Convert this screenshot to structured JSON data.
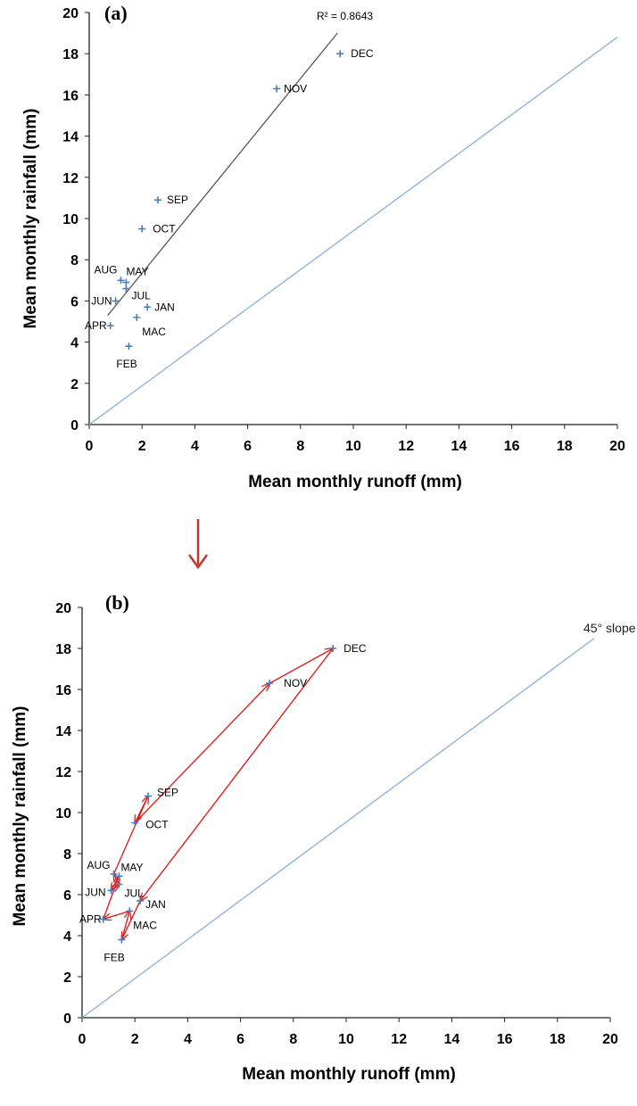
{
  "connector": {
    "arrow_color": "#c0392b"
  },
  "chart_data": [
    {
      "type": "scatter",
      "panel_label": "(a)",
      "xlabel": "Mean monthly runoff (mm)",
      "ylabel": "Mean monthly rainfall (mm)",
      "xlim": [
        0,
        20
      ],
      "ylim": [
        0,
        20
      ],
      "xticks": [
        0,
        2,
        4,
        6,
        8,
        10,
        12,
        14,
        16,
        18,
        20
      ],
      "yticks": [
        0,
        2,
        4,
        6,
        8,
        10,
        12,
        14,
        16,
        18,
        20
      ],
      "grid": false,
      "point_color": "#4a7ebb",
      "series": [
        {
          "points": [
            {
              "label": "JAN",
              "x": 2.2,
              "y": 5.7
            },
            {
              "label": "FEB",
              "x": 1.5,
              "y": 3.8
            },
            {
              "label": "MAC",
              "x": 1.8,
              "y": 5.2
            },
            {
              "label": "APR",
              "x": 0.8,
              "y": 4.8
            },
            {
              "label": "MAY",
              "x": 1.4,
              "y": 6.9
            },
            {
              "label": "JUN",
              "x": 1.0,
              "y": 6.0
            },
            {
              "label": "JUL",
              "x": 1.4,
              "y": 6.6
            },
            {
              "label": "AUG",
              "x": 1.2,
              "y": 7.0
            },
            {
              "label": "SEP",
              "x": 2.6,
              "y": 10.9
            },
            {
              "label": "OCT",
              "x": 2.0,
              "y": 9.5
            },
            {
              "label": "NOV",
              "x": 7.1,
              "y": 16.3
            },
            {
              "label": "DEC",
              "x": 9.5,
              "y": 18.0
            }
          ]
        }
      ],
      "reference_line": {
        "from": [
          0,
          0
        ],
        "to": [
          20,
          18.8
        ],
        "color": "#8fb4d9"
      },
      "trendline": {
        "from": [
          0.7,
          5.3
        ],
        "to": [
          9.4,
          19.0
        ],
        "color": "#555555",
        "r_squared_label": "R² = 0.8643"
      }
    },
    {
      "type": "scatter",
      "panel_label": "(b)",
      "xlabel": "Mean monthly runoff (mm)",
      "ylabel": "Mean monthly rainfall (mm)",
      "xlim": [
        0,
        20
      ],
      "ylim": [
        0,
        20
      ],
      "xticks": [
        0,
        2,
        4,
        6,
        8,
        10,
        12,
        14,
        16,
        18,
        20
      ],
      "yticks": [
        0,
        2,
        4,
        6,
        8,
        10,
        12,
        14,
        16,
        18,
        20
      ],
      "grid": false,
      "point_color": "#4a7ebb",
      "series": [
        {
          "points": [
            {
              "label": "JAN",
              "x": 2.2,
              "y": 5.7
            },
            {
              "label": "FEB",
              "x": 1.5,
              "y": 3.8
            },
            {
              "label": "MAC",
              "x": 1.8,
              "y": 5.2
            },
            {
              "label": "APR",
              "x": 0.8,
              "y": 4.8
            },
            {
              "label": "MAY",
              "x": 1.4,
              "y": 6.9
            },
            {
              "label": "JUN",
              "x": 1.1,
              "y": 6.2
            },
            {
              "label": "JUL",
              "x": 1.4,
              "y": 6.5
            },
            {
              "label": "AUG",
              "x": 1.2,
              "y": 7.0
            },
            {
              "label": "SEP",
              "x": 2.5,
              "y": 10.8
            },
            {
              "label": "OCT",
              "x": 2.0,
              "y": 9.5
            },
            {
              "label": "NOV",
              "x": 7.1,
              "y": 16.3
            },
            {
              "label": "DEC",
              "x": 9.5,
              "y": 18.0
            }
          ]
        }
      ],
      "reference_line": {
        "from": [
          0,
          0
        ],
        "to": [
          19.4,
          18.5
        ],
        "color": "#8fb4d9",
        "label": "45° slope"
      },
      "arrow_sequence": [
        "JAN",
        "FEB",
        "MAC",
        "APR",
        "MAY",
        "JUN",
        "JUL",
        "AUG",
        "SEP",
        "OCT",
        "NOV",
        "DEC",
        "JAN"
      ],
      "arrow_color": "#e02020"
    }
  ]
}
